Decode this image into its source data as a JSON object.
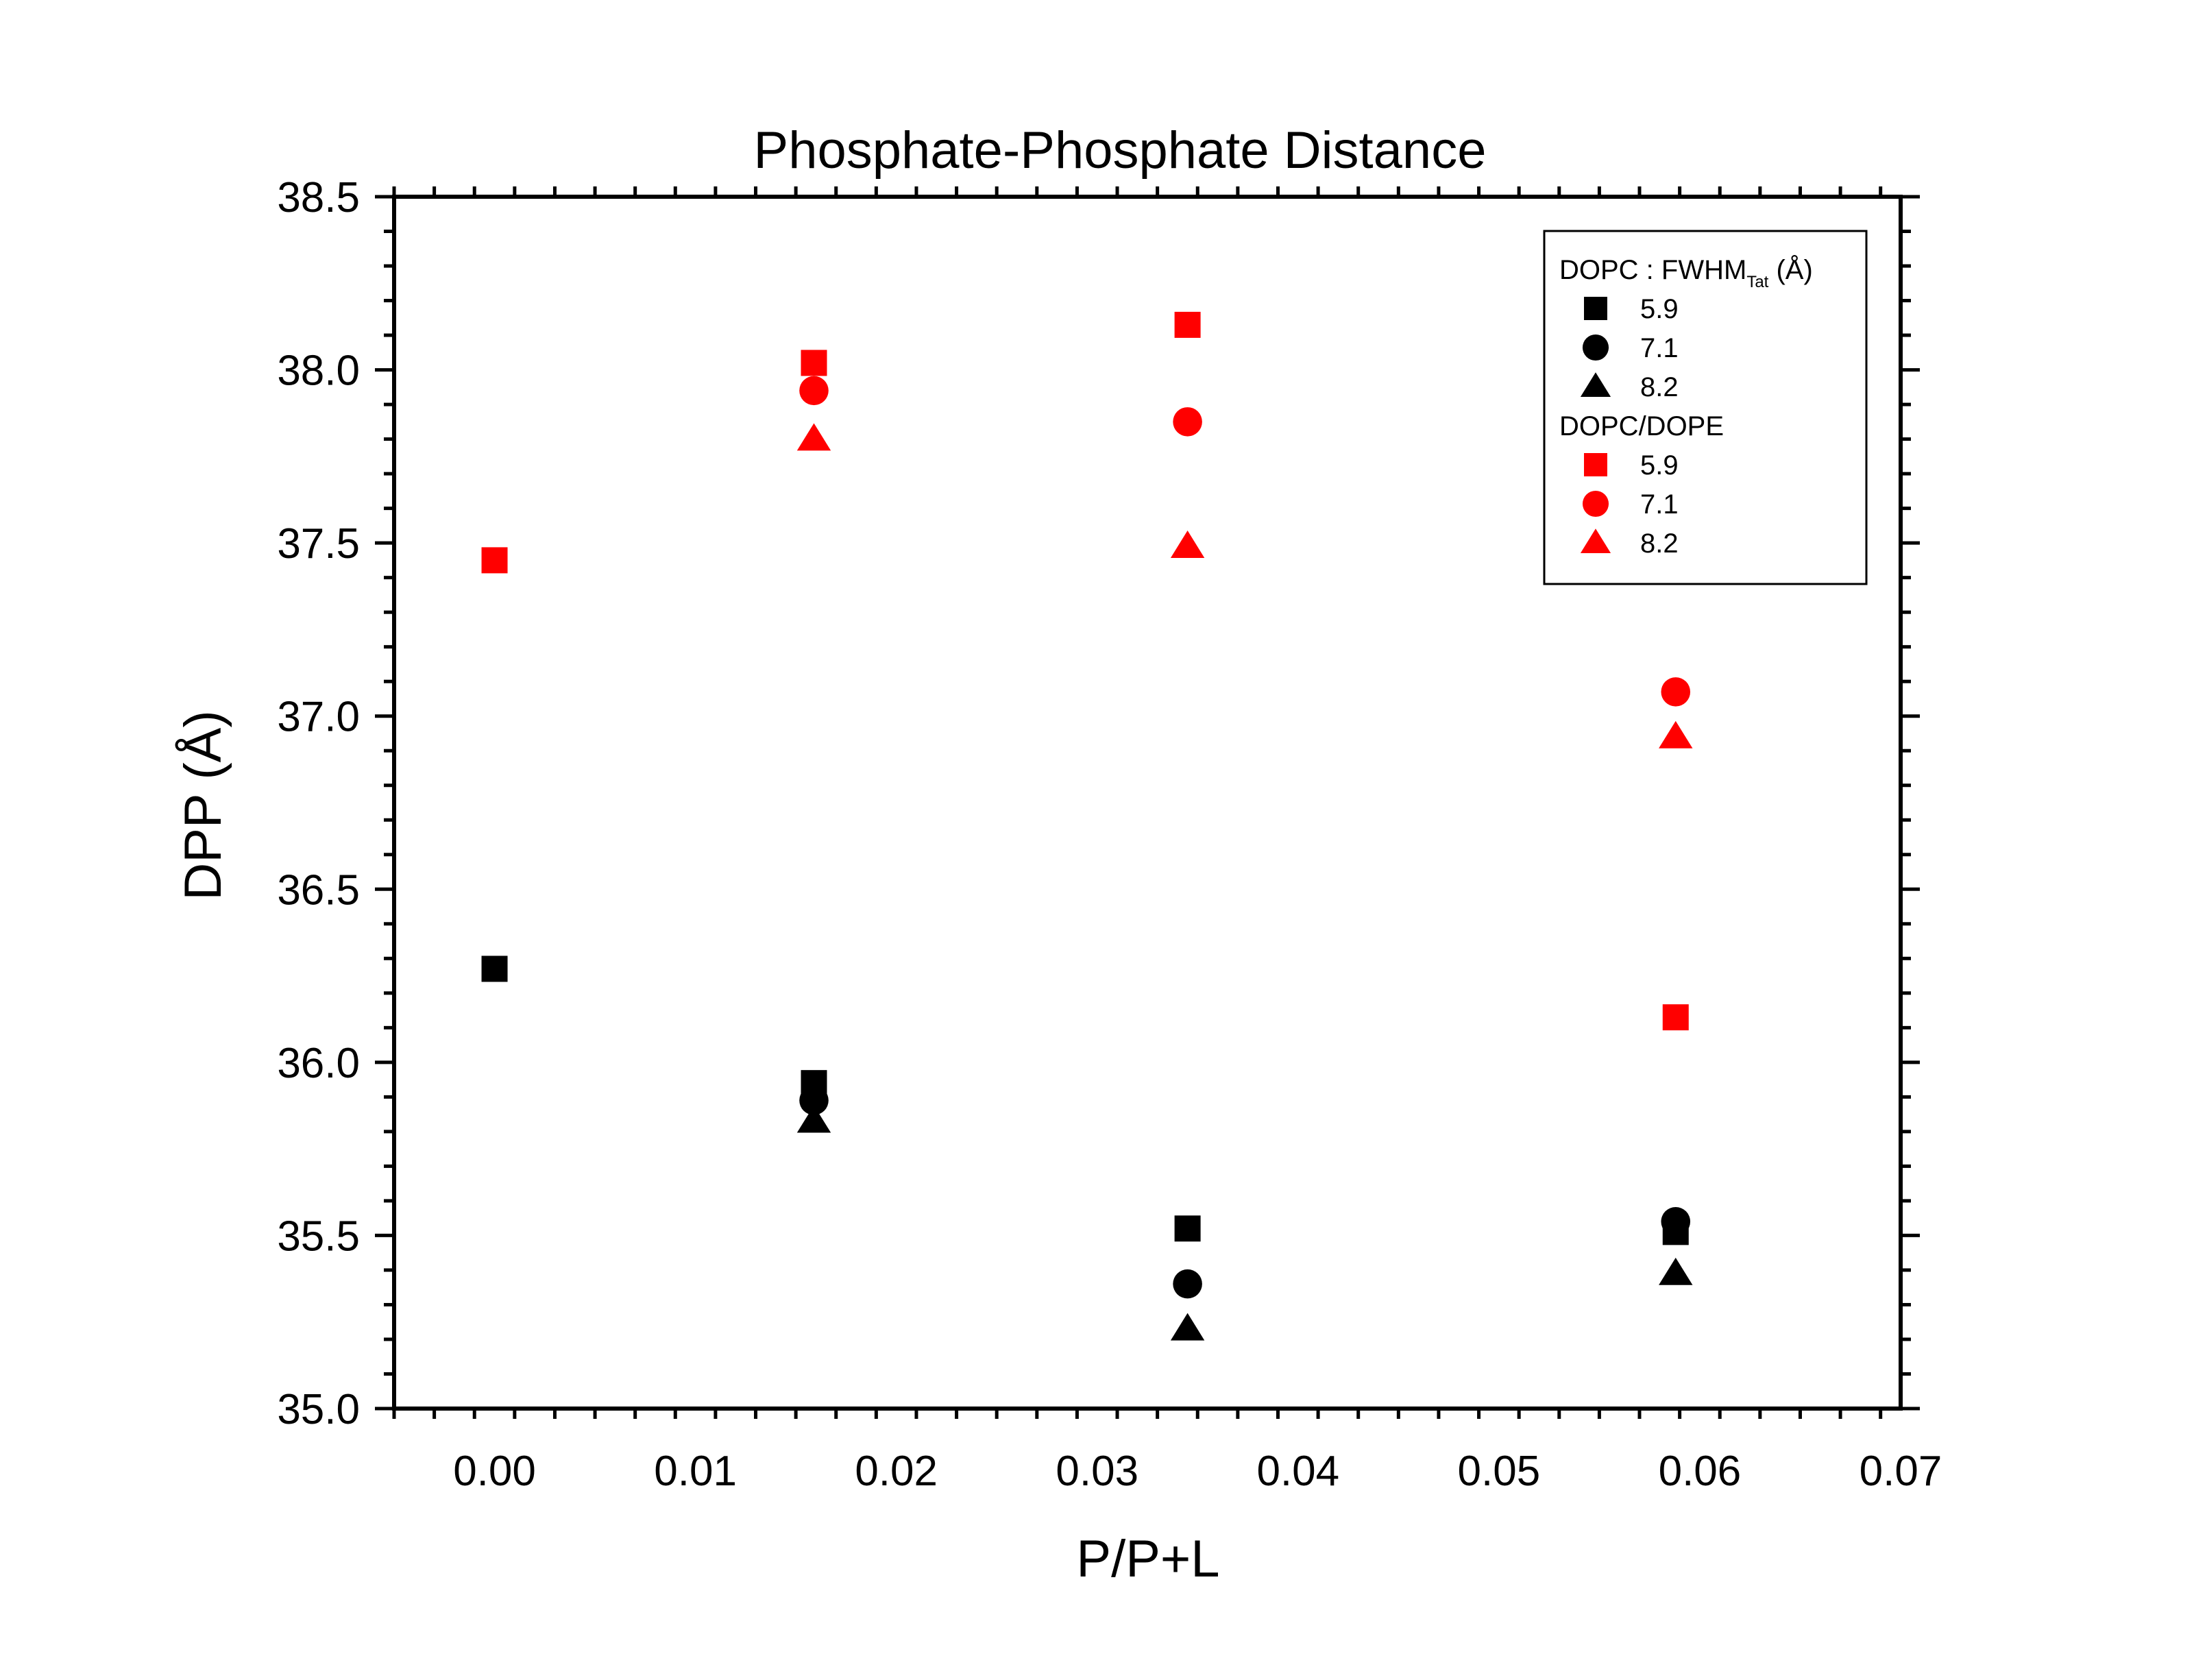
{
  "chart_data": {
    "type": "scatter",
    "title": "Phosphate-Phosphate Distance",
    "xlabel": "P/P+L",
    "ylabel": "DPP (Å)",
    "xlim": [
      -0.005,
      0.07
    ],
    "ylim": [
      35.0,
      38.5
    ],
    "x_ticks": [
      0.0,
      0.01,
      0.02,
      0.03,
      0.04,
      0.05,
      0.06,
      0.07
    ],
    "x_tick_labels": [
      "0.00",
      "0.01",
      "0.02",
      "0.03",
      "0.04",
      "0.05",
      "0.06",
      "0.07"
    ],
    "y_ticks": [
      35.0,
      35.5,
      36.0,
      36.5,
      37.0,
      37.5,
      38.0,
      38.5
    ],
    "y_tick_labels": [
      "35.0",
      "35.5",
      "36.0",
      "36.5",
      "37.0",
      "37.5",
      "38.0",
      "38.5"
    ],
    "grid": false,
    "legend_position": "top-right",
    "legend_groups": [
      {
        "title": "DOPC : FWHM",
        "title_sub": "Tat",
        "title_suffix": " (Å)",
        "series_indices": [
          0,
          1,
          2
        ]
      },
      {
        "title": "DOPC/DOPE",
        "title_sub": "",
        "title_suffix": "",
        "series_indices": [
          3,
          4,
          5
        ]
      }
    ],
    "series": [
      {
        "name": "5.9",
        "group": "DOPC",
        "marker": "square",
        "color": "#000000",
        "x": [
          0.0,
          0.0159,
          0.0345,
          0.0588
        ],
        "y": [
          36.27,
          35.94,
          35.52,
          35.51
        ]
      },
      {
        "name": "7.1",
        "group": "DOPC",
        "marker": "circle",
        "color": "#000000",
        "x": [
          0.0159,
          0.0345,
          0.0588
        ],
        "y": [
          35.89,
          35.36,
          35.54
        ]
      },
      {
        "name": "8.2",
        "group": "DOPC",
        "marker": "triangle",
        "color": "#000000",
        "x": [
          0.0159,
          0.0345,
          0.0588
        ],
        "y": [
          35.83,
          35.23,
          35.39
        ]
      },
      {
        "name": "5.9",
        "group": "DOPC/DOPE",
        "marker": "square",
        "color": "#ff0000",
        "x": [
          0.0,
          0.0159,
          0.0345,
          0.0588
        ],
        "y": [
          37.45,
          38.02,
          38.13,
          36.13
        ]
      },
      {
        "name": "7.1",
        "group": "DOPC/DOPE",
        "marker": "circle",
        "color": "#ff0000",
        "x": [
          0.0159,
          0.0345,
          0.0588
        ],
        "y": [
          37.94,
          37.85,
          37.07
        ]
      },
      {
        "name": "8.2",
        "group": "DOPC/DOPE",
        "marker": "triangle",
        "color": "#ff0000",
        "x": [
          0.0159,
          0.0345,
          0.0588
        ],
        "y": [
          37.8,
          37.49,
          36.94
        ]
      }
    ]
  }
}
